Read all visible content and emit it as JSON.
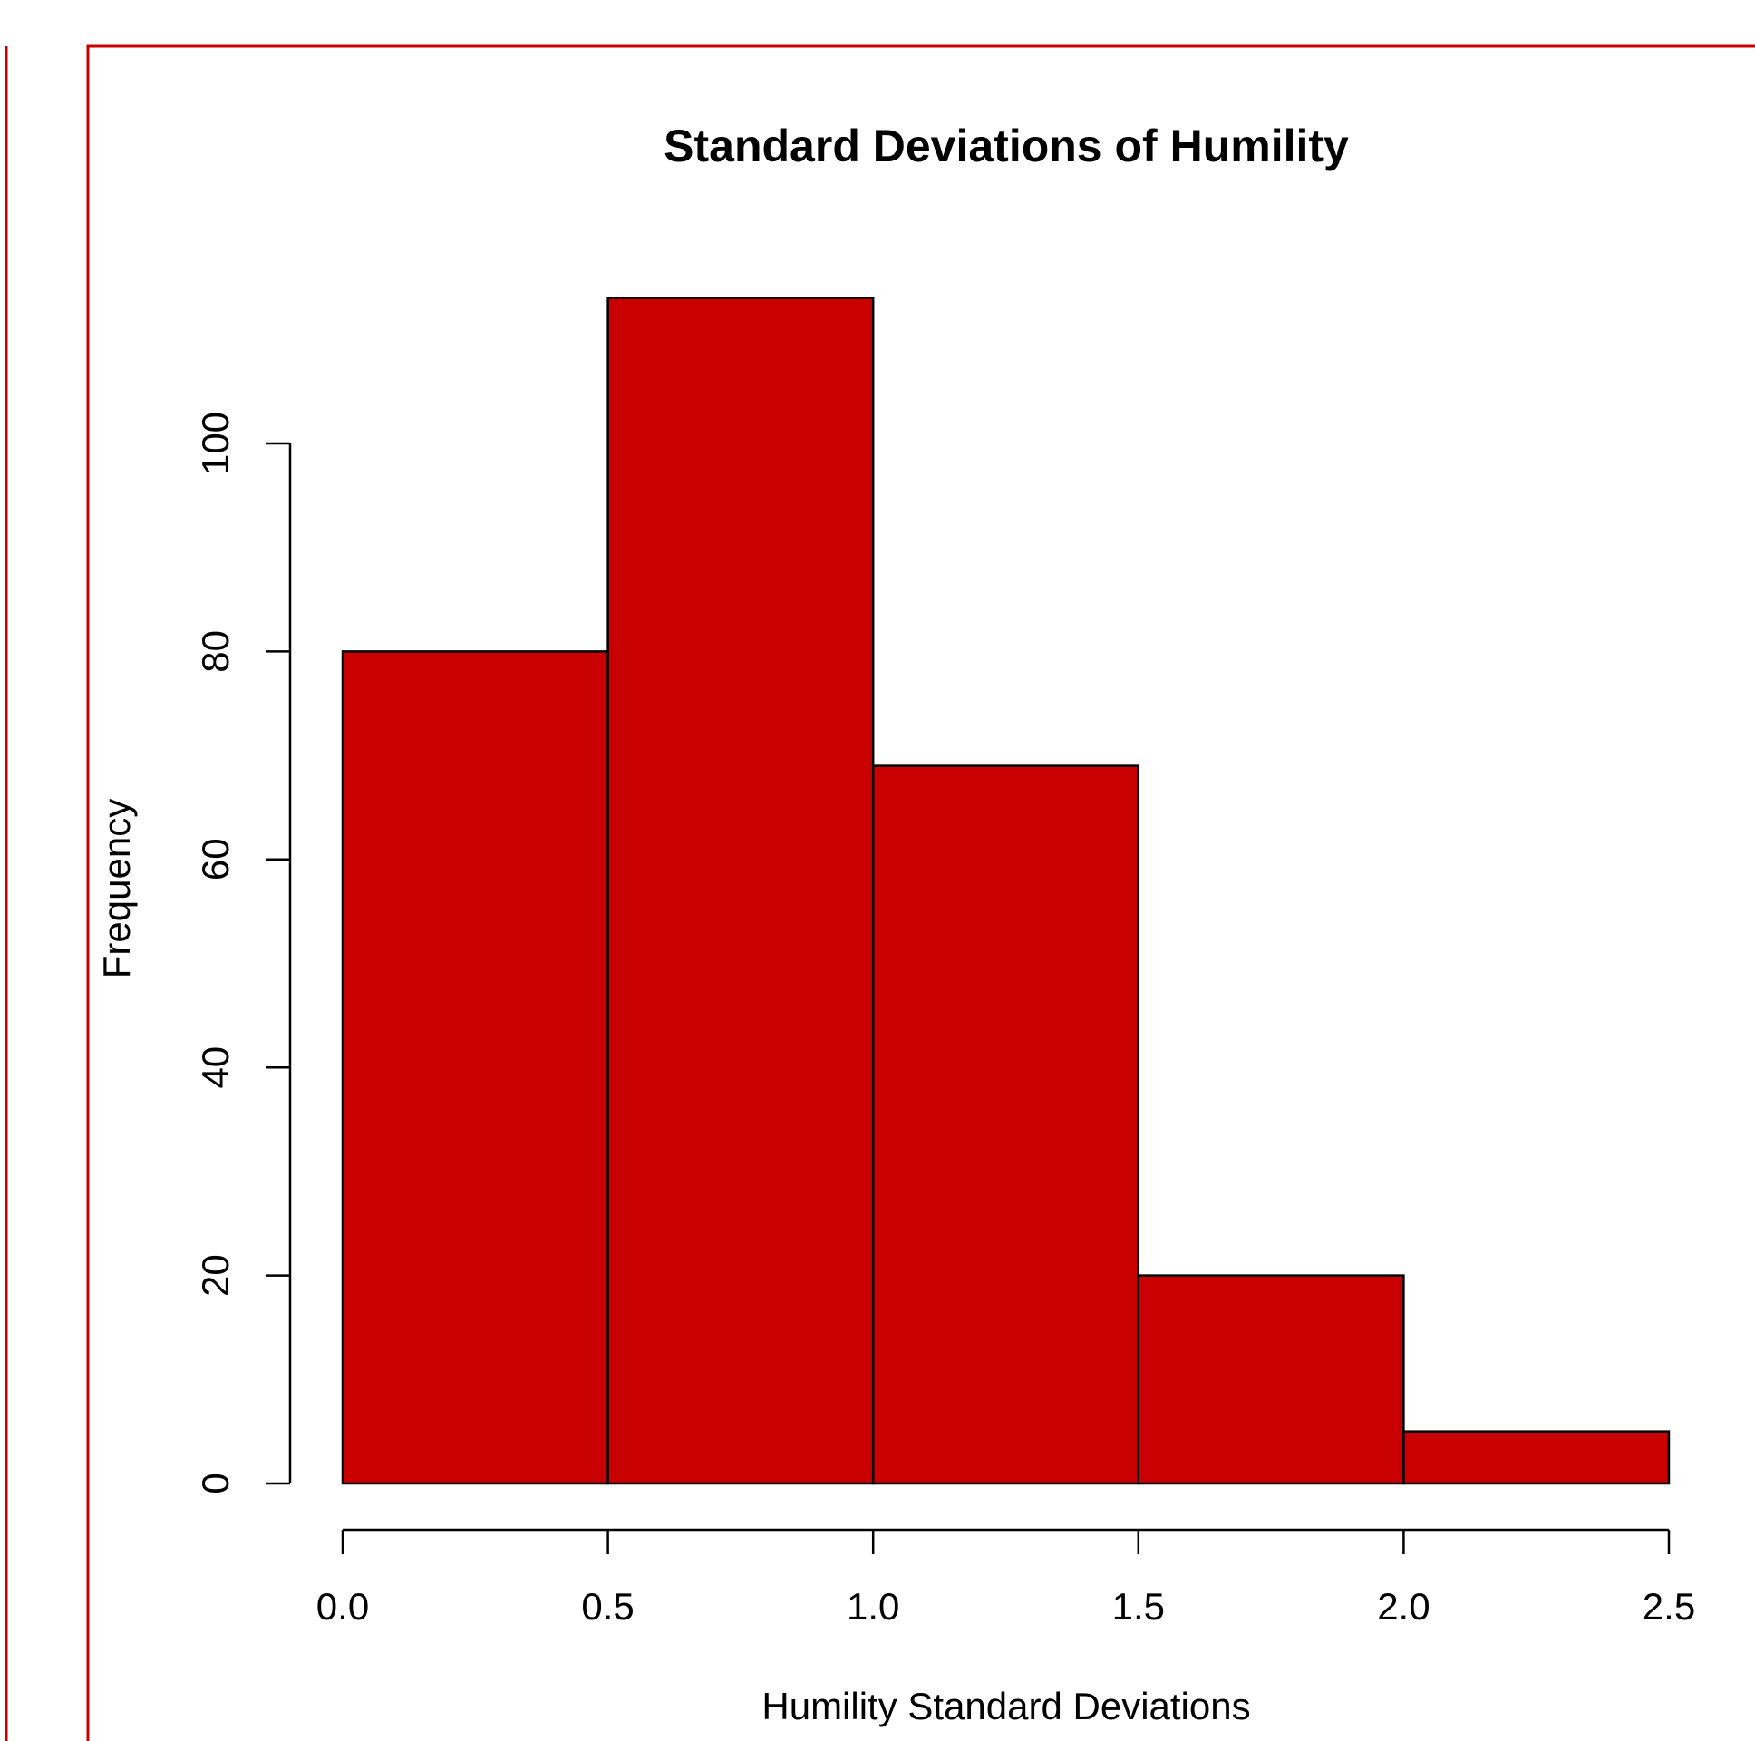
{
  "frame_color": "#c80000",
  "chart_data": {
    "type": "bar",
    "title": "Standard Deviations of Humility",
    "xlabel": "Humility Standard Deviations",
    "ylabel": "Frequency",
    "bins": [
      {
        "from": 0.0,
        "to": 0.5,
        "count": 80
      },
      {
        "from": 0.5,
        "to": 1.0,
        "count": 114
      },
      {
        "from": 1.0,
        "to": 1.5,
        "count": 69
      },
      {
        "from": 1.5,
        "to": 2.0,
        "count": 20
      },
      {
        "from": 2.0,
        "to": 2.5,
        "count": 5
      }
    ],
    "x_ticks": [
      0.0,
      0.5,
      1.0,
      1.5,
      2.0,
      2.5
    ],
    "x_tick_labels": [
      "0.0",
      "0.5",
      "1.0",
      "1.5",
      "2.0",
      "2.5"
    ],
    "y_ticks": [
      0,
      20,
      40,
      60,
      80,
      100
    ],
    "y_tick_labels": [
      "0",
      "20",
      "40",
      "60",
      "80",
      "100"
    ],
    "xlim": [
      0,
      2.5
    ],
    "ylim": [
      0,
      114
    ],
    "bar_color": "#c80000",
    "bar_edge_color": "#000000",
    "grid": false,
    "legend": "none"
  }
}
